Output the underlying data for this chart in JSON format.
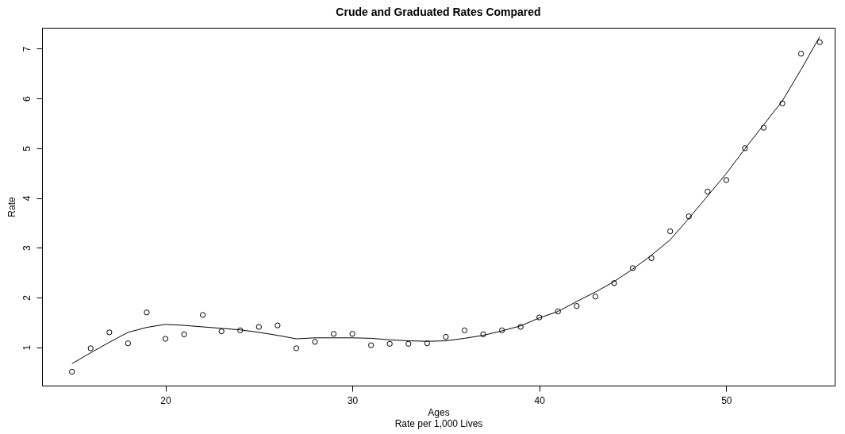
{
  "chart_data": {
    "type": "scatter",
    "title": "Crude and Graduated Rates Compared",
    "subtitle": "Rate per 1,000 Lives",
    "xlabel": "Ages",
    "ylabel": "Rate",
    "x": [
      15,
      16,
      17,
      18,
      19,
      20,
      21,
      22,
      23,
      24,
      25,
      26,
      27,
      28,
      29,
      30,
      31,
      32,
      33,
      34,
      35,
      36,
      37,
      38,
      39,
      40,
      41,
      42,
      43,
      44,
      45,
      46,
      47,
      48,
      49,
      50,
      51,
      52,
      53,
      54,
      55
    ],
    "series": [
      {
        "type": "line",
        "color": "#000000",
        "line_style": "solid",
        "values": [
          0.67,
          0.89,
          1.1,
          1.3,
          1.4,
          1.46,
          1.44,
          1.41,
          1.38,
          1.35,
          1.3,
          1.24,
          1.17,
          1.19,
          1.19,
          1.19,
          1.18,
          1.15,
          1.13,
          1.12,
          1.13,
          1.18,
          1.24,
          1.33,
          1.43,
          1.59,
          1.72,
          1.92,
          2.11,
          2.32,
          2.57,
          2.85,
          3.16,
          3.59,
          4.04,
          4.49,
          4.99,
          5.47,
          5.95,
          6.58,
          7.24
        ]
      },
      {
        "color": "#000000",
        "marker": "circle",
        "values": [
          0.51,
          0.98,
          1.3,
          1.08,
          1.7,
          1.17,
          1.26,
          1.65,
          1.32,
          1.34,
          1.41,
          1.44,
          0.98,
          1.11,
          1.27,
          1.27,
          1.04,
          1.07,
          1.07,
          1.08,
          1.21,
          1.34,
          1.26,
          1.34,
          1.41,
          1.6,
          1.72,
          1.83,
          2.02,
          2.29,
          2.59,
          2.79,
          3.33,
          3.63,
          4.13,
          4.36,
          5.0,
          5.41,
          5.9,
          6.9,
          7.13
        ]
      }
    ],
    "xlim": [
      13.4,
      55.8
    ],
    "xticks": [
      20,
      30,
      40,
      50
    ],
    "ylim": [
      0.23,
      7.42
    ],
    "yticks": [
      1,
      2,
      3,
      4,
      5,
      6,
      7
    ],
    "grid": false
  }
}
